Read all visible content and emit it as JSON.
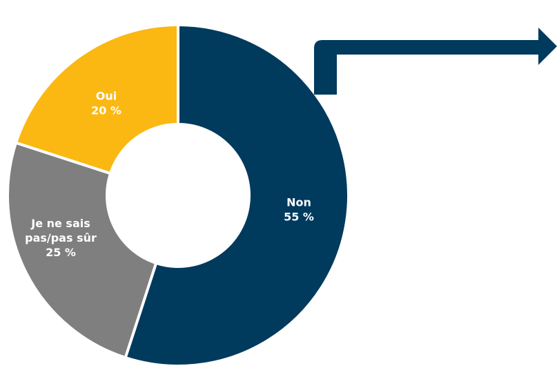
{
  "chart_data": {
    "type": "pie",
    "title": "",
    "slices": [
      {
        "label_lines": [
          "Non"
        ],
        "value": 55,
        "value_text": "55 %",
        "color": "#003a5d"
      },
      {
        "label_lines": [
          "Je ne sais",
          "pas/pas sûr"
        ],
        "value": 25,
        "value_text": "25 %",
        "color": "#7f7f7f"
      },
      {
        "label_lines": [
          "Oui"
        ],
        "value": 20,
        "value_text": "20 %",
        "color": "#fbb813"
      }
    ],
    "start_angle_deg": 0,
    "direction": "clockwise",
    "donut": true,
    "separator_color": "#ffffff"
  },
  "arrow": {
    "color": "#003a5d",
    "icon": "bent-arrow-right-icon"
  }
}
